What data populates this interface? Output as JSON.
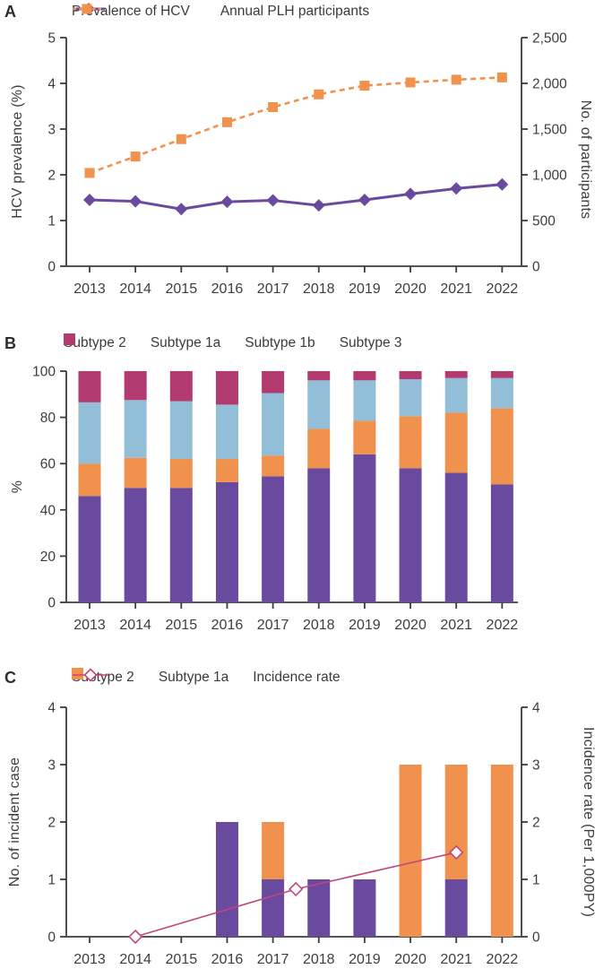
{
  "style": {
    "axis_color": "#3d3d3d",
    "text_color": "#3d3d3d",
    "background": "#ffffff"
  },
  "chart_data": [
    {
      "panel": "A",
      "type": "line",
      "x_labels": [
        "2013",
        "2014",
        "2015",
        "2016",
        "2017",
        "2018",
        "2019",
        "2020",
        "2021",
        "2022"
      ],
      "series": [
        {
          "name": "Prevalence of HCV",
          "axis": "left",
          "color": "#6a4a9e",
          "marker": "diamond",
          "line_style": "solid",
          "values": [
            1.45,
            1.42,
            1.25,
            1.41,
            1.44,
            1.33,
            1.45,
            1.58,
            1.7,
            1.79
          ]
        },
        {
          "name": "Annual PLH participants",
          "axis": "right",
          "color": "#f0914e",
          "marker": "square",
          "line_style": "dashed",
          "values": [
            1020,
            1200,
            1390,
            1575,
            1740,
            1880,
            1975,
            2010,
            2040,
            2065
          ]
        }
      ],
      "left_axis": {
        "label": "HCV prevalence (%)",
        "min": 0,
        "max": 5,
        "step": 1,
        "tick_labels": [
          "0",
          "1",
          "2",
          "3",
          "4",
          "5"
        ]
      },
      "right_axis": {
        "label": "No. of participants",
        "min": 0,
        "max": 2500,
        "step": 500,
        "tick_labels": [
          "0",
          "500",
          "1,000",
          "1,500",
          "2,000",
          "2,500"
        ]
      },
      "grid": false,
      "legend_position": "top"
    },
    {
      "panel": "B",
      "type": "bar",
      "subtype": "stacked-100",
      "x_labels": [
        "2013",
        "2014",
        "2015",
        "2016",
        "2017",
        "2018",
        "2019",
        "2020",
        "2021",
        "2022"
      ],
      "series": [
        {
          "name": "Subtype 2",
          "color": "#6a4a9e",
          "values": [
            46,
            49.5,
            49.5,
            52,
            54.5,
            58,
            64,
            58,
            56,
            51
          ]
        },
        {
          "name": "Subtype 1a",
          "color": "#f0914e",
          "values": [
            14,
            13,
            12.5,
            10,
            9,
            17,
            14.5,
            22.5,
            26,
            33
          ]
        },
        {
          "name": "Subtype 1b",
          "color": "#92bed8",
          "values": [
            26.5,
            25,
            25,
            23.5,
            27,
            21,
            17.5,
            16,
            15,
            13
          ]
        },
        {
          "name": "Subtype 3",
          "color": "#b23a6f",
          "values": [
            13.5,
            12.5,
            13,
            14.5,
            9.5,
            4,
            4,
            3.5,
            3,
            3
          ]
        }
      ],
      "left_axis": {
        "label": "%",
        "min": 0,
        "max": 100,
        "step": 20,
        "tick_labels": [
          "0",
          "20",
          "40",
          "60",
          "80",
          "100"
        ]
      },
      "grid": false,
      "legend_position": "top"
    },
    {
      "panel": "C",
      "type": "bar",
      "subtype": "stacked-with-line",
      "x_labels": [
        "2013",
        "2014",
        "2015",
        "2016",
        "2017",
        "2018",
        "2019",
        "2020",
        "2021",
        "2022"
      ],
      "bar_series": [
        {
          "name": "Subtype 2",
          "color": "#6a4a9e",
          "values": [
            0,
            0,
            0,
            2,
            1,
            1,
            1,
            0,
            1,
            0
          ]
        },
        {
          "name": "Subtype 1a",
          "color": "#f0914e",
          "values": [
            0,
            0,
            0,
            0,
            1,
            0,
            0,
            3,
            2,
            3
          ]
        }
      ],
      "line_series": {
        "name": "Incidence rate",
        "color": "#c0477c",
        "marker": "open-diamond",
        "points": [
          {
            "x": 2014,
            "y": 0
          },
          {
            "x": 2017.5,
            "y": 0.83
          },
          {
            "x": 2021,
            "y": 1.47
          }
        ]
      },
      "left_axis": {
        "label": "No. of incident case",
        "min": 0,
        "max": 4,
        "step": 1,
        "tick_labels": [
          "0",
          "1",
          "2",
          "3",
          "4"
        ]
      },
      "right_axis": {
        "label": "Incidence rate (Per 1,000PY)",
        "min": 0,
        "max": 4,
        "step": 1,
        "tick_labels": [
          "0",
          "1",
          "2",
          "3",
          "4"
        ]
      },
      "grid": false,
      "legend_position": "top"
    }
  ]
}
